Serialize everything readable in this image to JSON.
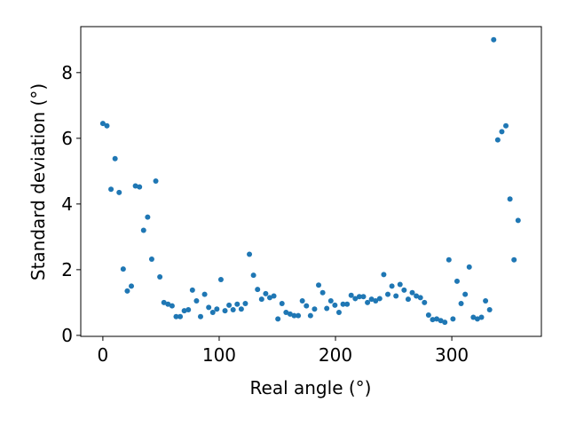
{
  "chart_data": {
    "type": "scatter",
    "xlabel": "Real angle (°)",
    "ylabel": "Standard deviation (°)",
    "color": "#1f77b4",
    "xlim": [
      -19,
      377
    ],
    "ylim": [
      -0.03,
      9.4
    ],
    "xticks": [
      0,
      100,
      200,
      300
    ],
    "yticks": [
      0,
      2,
      4,
      6,
      8
    ],
    "x": [
      0,
      3.5,
      7,
      10.5,
      14,
      17.5,
      21,
      24.5,
      28,
      31.5,
      35,
      38.5,
      42,
      45.5,
      49,
      52.5,
      56,
      59.5,
      63,
      66.5,
      70,
      73.5,
      77,
      80.5,
      84,
      87.5,
      91,
      94.5,
      98,
      101.5,
      105,
      108.5,
      112,
      115.5,
      119,
      122.5,
      126,
      129.5,
      133,
      136.5,
      140,
      143.5,
      147,
      150.5,
      154,
      157.5,
      161,
      164.5,
      168,
      171.5,
      175,
      178.5,
      182,
      185.5,
      189,
      192.5,
      196,
      199.5,
      203,
      206.5,
      210,
      213.5,
      217,
      220.5,
      224,
      227.5,
      231,
      234.5,
      238,
      241.5,
      245,
      248.5,
      252,
      255.5,
      259,
      262.5,
      266,
      269.5,
      273,
      276.5,
      280,
      283.5,
      287,
      290.5,
      294,
      297.5,
      301,
      304.5,
      308,
      311.5,
      315,
      318.5,
      322,
      325.5,
      329,
      332.5,
      336,
      339.5,
      343,
      346.5,
      350,
      353.5,
      357
    ],
    "values": [
      6.45,
      6.38,
      4.45,
      5.38,
      4.35,
      2.02,
      1.35,
      1.5,
      4.55,
      4.52,
      3.2,
      3.6,
      2.32,
      4.7,
      1.78,
      1.0,
      0.95,
      0.9,
      0.57,
      0.57,
      0.75,
      0.78,
      1.38,
      1.05,
      0.57,
      1.25,
      0.85,
      0.7,
      0.8,
      1.7,
      0.75,
      0.92,
      0.78,
      0.95,
      0.8,
      0.97,
      2.47,
      1.83,
      1.4,
      1.1,
      1.27,
      1.15,
      1.2,
      0.5,
      0.97,
      0.7,
      0.65,
      0.6,
      0.6,
      1.05,
      0.9,
      0.6,
      0.8,
      1.53,
      1.3,
      0.82,
      1.05,
      0.92,
      0.7,
      0.95,
      0.95,
      1.22,
      1.12,
      1.18,
      1.18,
      1.0,
      1.1,
      1.05,
      1.12,
      1.85,
      1.25,
      1.5,
      1.2,
      1.55,
      1.38,
      1.1,
      1.3,
      1.2,
      1.15,
      1.0,
      0.62,
      0.48,
      0.5,
      0.45,
      0.4,
      2.3,
      0.5,
      1.65,
      0.97,
      1.25,
      2.08,
      0.55,
      0.5,
      0.55,
      1.05,
      0.78,
      9.0,
      5.95,
      6.2,
      6.38,
      4.15,
      2.3,
      3.5
    ]
  }
}
